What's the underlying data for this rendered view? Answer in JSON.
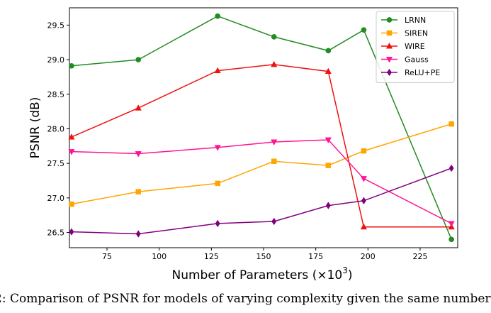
{
  "chart_data": {
    "type": "line",
    "title": "",
    "xlabel": "Number of Parameters (×10",
    "xlabel_sup": "3",
    "xlabel_close": ")",
    "ylabel": "PSNR (dB)",
    "xlim": [
      57,
      243
    ],
    "ylim": [
      26.28,
      29.75
    ],
    "xticks": [
      75,
      100,
      125,
      150,
      175,
      200,
      225
    ],
    "yticks": [
      26.5,
      27.0,
      27.5,
      28.0,
      28.5,
      29.0,
      29.5
    ],
    "ytick_labels": [
      "26.5",
      "27.0",
      "27.5",
      "28.0",
      "28.5",
      "29.0",
      "29.5"
    ],
    "grid": false,
    "legend_position": "top-right",
    "series": [
      {
        "name": "LRNN",
        "color": "#228B22",
        "marker": "circle",
        "x": [
          58,
          90,
          128,
          155,
          181,
          198,
          240
        ],
        "y": [
          28.91,
          29.0,
          29.63,
          29.33,
          29.13,
          29.43,
          26.4
        ]
      },
      {
        "name": "SIREN",
        "color": "#FFA500",
        "marker": "square",
        "x": [
          58,
          90,
          128,
          155,
          181,
          198,
          240
        ],
        "y": [
          26.91,
          27.09,
          27.21,
          27.53,
          27.47,
          27.68,
          28.07
        ]
      },
      {
        "name": "WIRE",
        "color": "#EE1111",
        "marker": "triangle-up",
        "x": [
          58,
          90,
          128,
          155,
          181,
          198,
          240
        ],
        "y": [
          27.88,
          28.3,
          28.84,
          28.93,
          28.83,
          26.58,
          26.58
        ]
      },
      {
        "name": "Gauss",
        "color": "#FF1493",
        "marker": "triangle-down",
        "x": [
          58,
          90,
          128,
          155,
          181,
          198,
          240
        ],
        "y": [
          27.67,
          27.64,
          27.73,
          27.81,
          27.84,
          27.28,
          26.63
        ]
      },
      {
        "name": "ReLU+PE",
        "color": "#800080",
        "marker": "diamond",
        "x": [
          58,
          90,
          128,
          155,
          181,
          198,
          240
        ],
        "y": [
          26.51,
          26.48,
          26.63,
          26.66,
          26.89,
          26.96,
          27.43
        ]
      }
    ]
  },
  "caption": "2: Comparison of PSNR for models of varying complexity given the same number"
}
